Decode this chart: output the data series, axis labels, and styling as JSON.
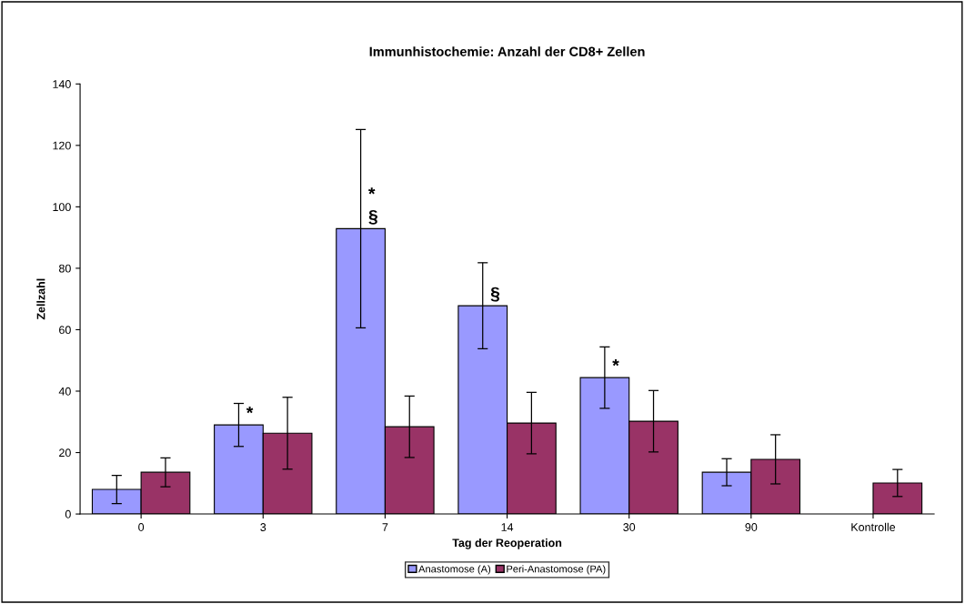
{
  "chart_data": {
    "type": "bar",
    "title": "Immunhistochemie: Anzahl der CD8+ Zellen",
    "xlabel": "Tag der Reoperation",
    "ylabel": "Zellzahl",
    "categories": [
      "0",
      "3",
      "7",
      "14",
      "30",
      "90",
      "Kontrolle"
    ],
    "series": [
      {
        "name": "Anastomose (A)",
        "color": "#9999ff",
        "values": [
          8.0,
          29.0,
          92.9,
          67.8,
          44.4,
          13.6,
          null
        ],
        "errors": [
          4.6,
          7.0,
          32.3,
          14.0,
          10.0,
          4.4,
          null
        ]
      },
      {
        "name": "Peri-Anastomose (PA)",
        "color": "#993366",
        "values": [
          13.6,
          26.3,
          28.4,
          29.6,
          30.2,
          17.8,
          10.1
        ],
        "errors": [
          4.7,
          11.7,
          10.0,
          10.0,
          10.0,
          8.0,
          4.4
        ]
      }
    ],
    "ylim": [
      0,
      140
    ],
    "yticks": [
      0,
      20,
      40,
      60,
      80,
      100,
      120,
      140
    ],
    "grid": false,
    "legend": "bottom",
    "annotations": [
      {
        "text": "*",
        "x": "3",
        "y": 29.0
      },
      {
        "text": "§",
        "x": "7",
        "y": 92.9
      },
      {
        "text": "*",
        "x": "7",
        "y": 92.9
      },
      {
        "text": "§",
        "x": "14",
        "y": 67.8
      },
      {
        "text": "*",
        "x": "30",
        "y": 44.4
      }
    ]
  }
}
